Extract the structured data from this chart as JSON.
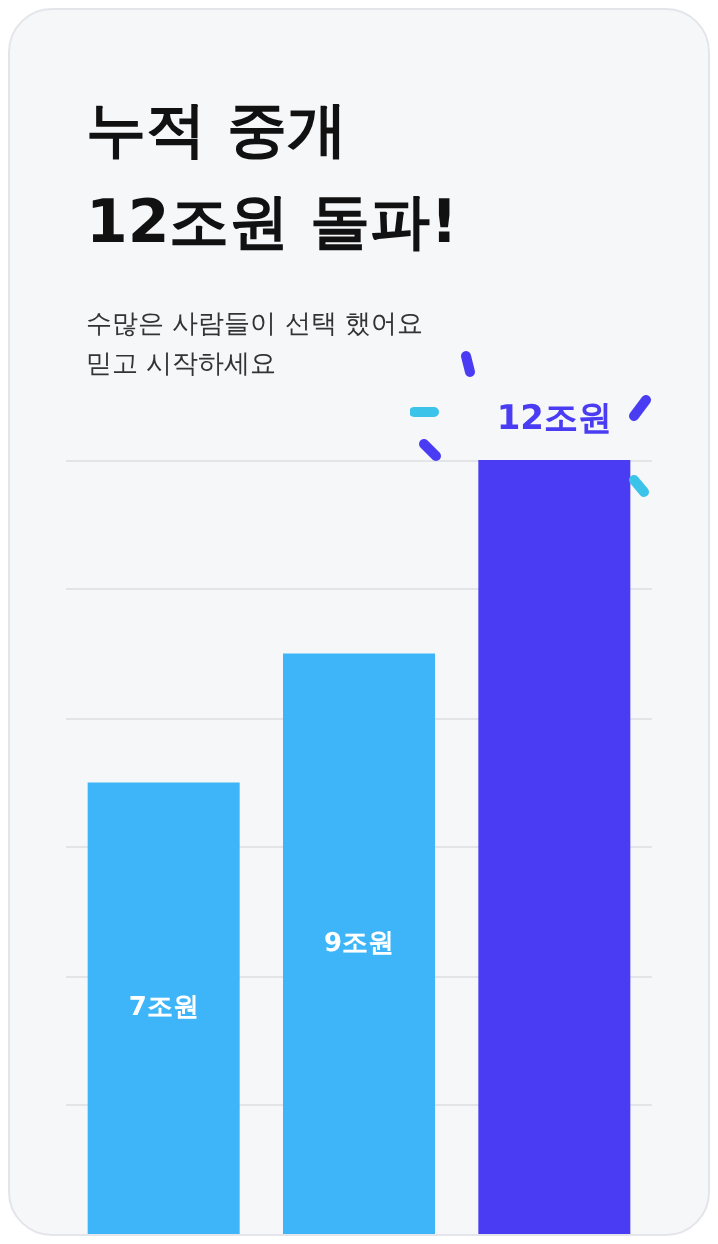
{
  "chart_data": {
    "type": "bar",
    "title": "누적 중개\n12조원 돌파!",
    "subtitle": "수많은 사람들이 선택 했어요\n믿고 시작하세요",
    "categories": [
      null,
      null,
      null
    ],
    "values": [
      7,
      9,
      12
    ],
    "value_labels": [
      "7조원",
      "9조원",
      "12조원"
    ],
    "colors": [
      "#3db5f8",
      "#3db5f8",
      "#4a3cf2"
    ],
    "grid": "y"
  }
}
